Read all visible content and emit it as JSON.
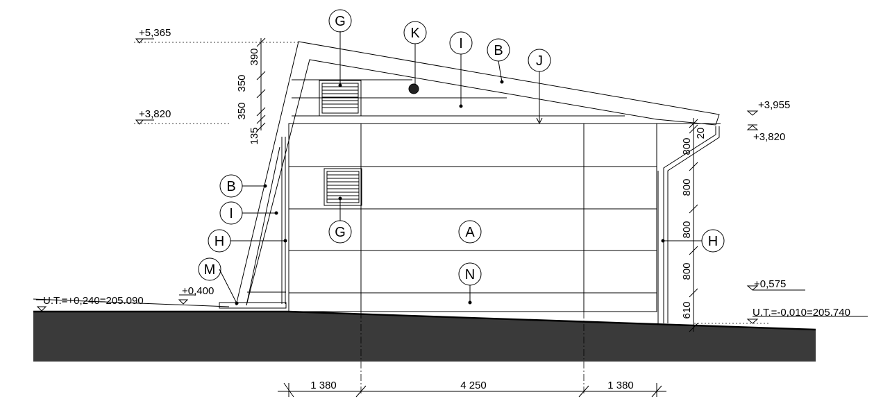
{
  "levels": {
    "top_left": "+5,365",
    "mid_left": "+3,820",
    "right_upper": "+3,955",
    "right_lower": "+3,820",
    "plinth_left": "+0,400",
    "plinth_right": "+0,575",
    "terrain_left": "U.T.=+0,240=205.090",
    "terrain_right": "U.T.=-0,010=205.740"
  },
  "left_dims": {
    "d390": "390",
    "d350a": "350",
    "d350b": "350",
    "d135": "135"
  },
  "right_dims": {
    "d20": "20",
    "d800a": "800",
    "d800b": "800",
    "d800c": "800",
    "d800d": "800",
    "d610": "610"
  },
  "bottom_dims": {
    "left": "1 380",
    "middle": "4 250",
    "right": "1 380"
  },
  "callouts": {
    "G_top": "G",
    "K": "K",
    "I_top": "I",
    "B_top": "B",
    "J": "J",
    "B_left": "B",
    "I_left": "I",
    "H_left": "H",
    "M": "M",
    "G_mid": "G",
    "A": "A",
    "N": "N",
    "H_right": "H"
  }
}
